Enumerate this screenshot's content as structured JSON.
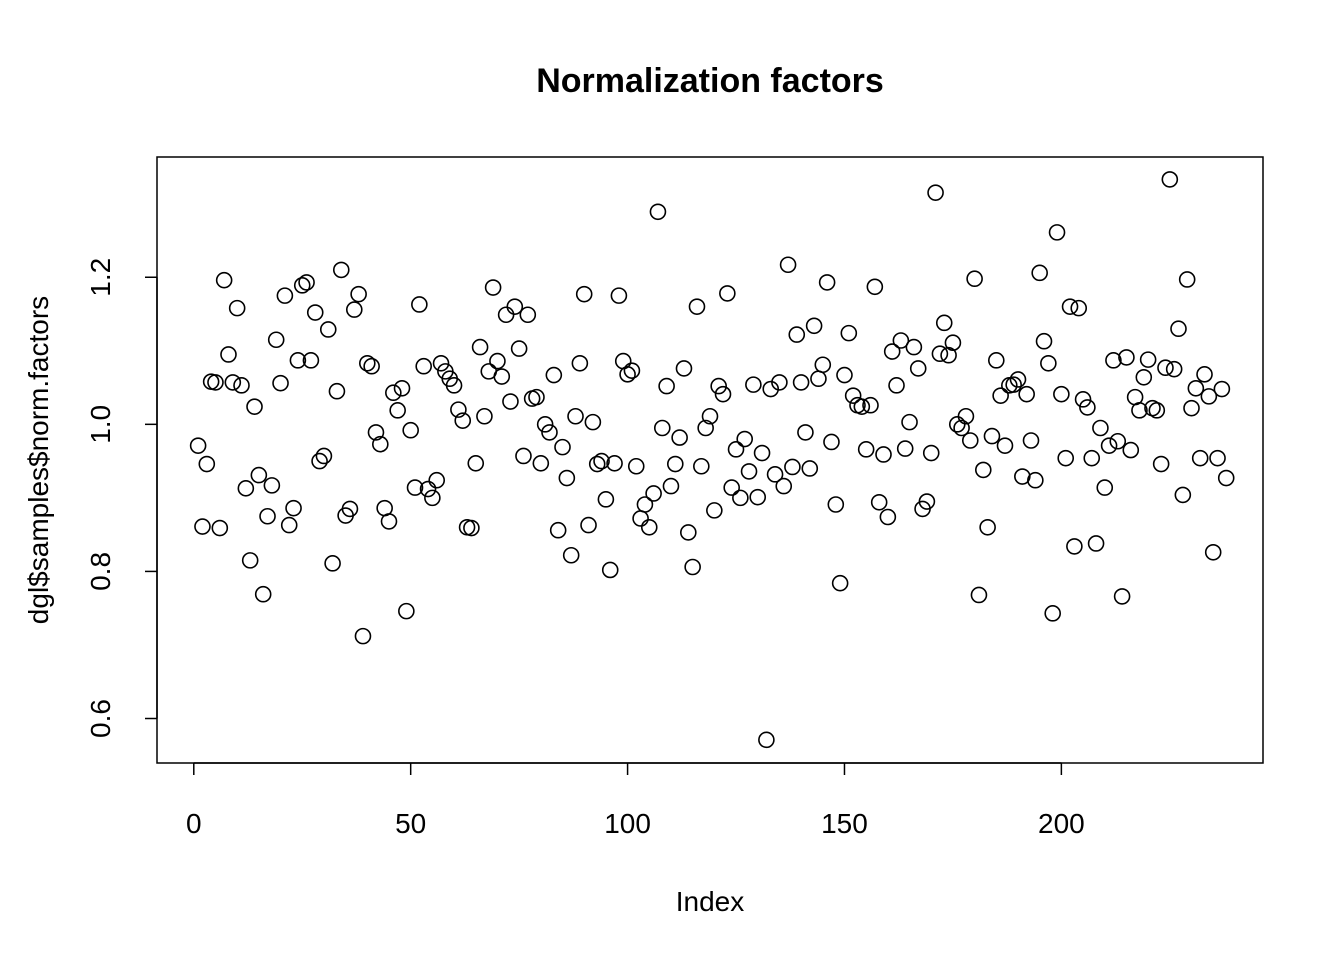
{
  "chart_data": {
    "type": "scatter",
    "title": "Normalization factors",
    "x_label": "Index",
    "y_label": "dgl$samples$norm.factors",
    "color": "#000000",
    "grid": false,
    "xlim": [
      -8.48,
      246.48
    ],
    "ylim": [
      0.5395,
      1.3635
    ],
    "xticks": [
      0,
      50,
      100,
      150,
      200
    ],
    "yticks": [
      0.6,
      0.8,
      {
        "value": 1,
        "label": "1.0"
      },
      1.2
    ],
    "x": [
      1,
      2,
      3,
      4,
      5,
      6,
      7,
      8,
      9,
      10,
      11,
      12,
      13,
      14,
      15,
      16,
      17,
      18,
      19,
      20,
      21,
      22,
      23,
      24,
      25,
      26,
      27,
      28,
      29,
      30,
      31,
      32,
      33,
      34,
      35,
      36,
      37,
      38,
      39,
      40,
      41,
      42,
      43,
      44,
      45,
      46,
      47,
      48,
      49,
      50,
      51,
      52,
      53,
      54,
      55,
      56,
      57,
      58,
      59,
      60,
      61,
      62,
      63,
      64,
      65,
      66,
      67,
      68,
      69,
      70,
      71,
      72,
      73,
      74,
      75,
      76,
      77,
      78,
      79,
      80,
      81,
      82,
      83,
      84,
      85,
      86,
      87,
      88,
      89,
      90,
      91,
      92,
      93,
      94,
      95,
      96,
      97,
      98,
      99,
      100,
      101,
      102,
      103,
      104,
      105,
      106,
      107,
      108,
      109,
      110,
      111,
      112,
      113,
      114,
      115,
      116,
      117,
      118,
      119,
      120,
      121,
      122,
      123,
      124,
      125,
      126,
      127,
      128,
      129,
      130,
      131,
      132,
      133,
      134,
      135,
      136,
      137,
      138,
      139,
      140,
      141,
      142,
      143,
      144,
      145,
      146,
      147,
      148,
      149,
      150,
      151,
      152,
      153,
      154,
      155,
      156,
      157,
      158,
      159,
      160,
      161,
      162,
      163,
      164,
      165,
      166,
      167,
      168,
      169,
      170,
      171,
      172,
      173,
      174,
      175,
      176,
      177,
      178,
      179,
      180,
      181,
      182,
      183,
      184,
      185,
      186,
      187,
      188,
      189,
      190,
      191,
      192,
      193,
      194,
      195,
      196,
      197,
      198,
      199,
      200,
      201,
      202,
      203,
      204,
      205,
      206,
      207,
      208,
      209,
      210,
      211,
      212,
      213,
      214,
      215,
      216,
      217,
      218,
      219,
      220,
      221,
      222,
      223,
      224,
      225,
      226,
      227,
      228,
      229,
      230,
      231,
      232,
      233,
      234,
      235,
      236,
      237,
      238
    ],
    "values": [
      0.971,
      0.861,
      0.946,
      1.058,
      1.057,
      0.859,
      1.196,
      1.095,
      1.057,
      1.158,
      1.053,
      0.913,
      0.815,
      1.024,
      0.931,
      0.769,
      0.875,
      0.917,
      1.115,
      1.056,
      1.175,
      0.863,
      0.886,
      1.087,
      1.189,
      1.193,
      1.087,
      1.152,
      0.95,
      0.957,
      1.129,
      0.811,
      1.045,
      1.21,
      0.876,
      0.885,
      1.156,
      1.177,
      0.712,
      1.083,
      1.079,
      0.989,
      0.973,
      0.886,
      0.868,
      1.043,
      1.019,
      1.049,
      0.746,
      0.992,
      0.914,
      1.163,
      1.079,
      0.912,
      0.9,
      0.924,
      1.083,
      1.072,
      1.062,
      1.053,
      1.02,
      1.005,
      0.86,
      0.859,
      0.947,
      1.105,
      1.011,
      1.072,
      1.186,
      1.086,
      1.065,
      1.149,
      1.031,
      1.16,
      1.103,
      0.957,
      1.149,
      1.035,
      1.037,
      0.947,
      1.0,
      0.989,
      1.067,
      0.856,
      0.969,
      0.927,
      0.822,
      1.011,
      1.083,
      1.177,
      0.863,
      1.003,
      0.946,
      0.95,
      0.898,
      0.802,
      0.947,
      1.175,
      1.086,
      1.068,
      1.073,
      0.943,
      0.872,
      0.891,
      0.86,
      0.906,
      1.289,
      0.995,
      1.052,
      0.916,
      0.946,
      0.982,
      1.076,
      0.853,
      0.806,
      1.16,
      0.943,
      0.995,
      1.011,
      0.883,
      1.052,
      1.041,
      1.178,
      0.914,
      0.966,
      0.9,
      0.98,
      0.936,
      1.054,
      0.901,
      0.961,
      0.571,
      1.048,
      0.932,
      1.057,
      0.916,
      1.217,
      0.942,
      1.122,
      1.057,
      0.989,
      0.94,
      1.134,
      1.062,
      1.081,
      1.193,
      0.976,
      0.891,
      0.784,
      1.067,
      1.124,
      1.039,
      1.026,
      1.024,
      0.966,
      1.026,
      1.187,
      0.894,
      0.959,
      0.874,
      1.099,
      1.053,
      1.114,
      0.967,
      1.003,
      1.105,
      1.076,
      0.885,
      0.895,
      0.961,
      1.315,
      1.096,
      1.138,
      1.094,
      1.111,
      1.0,
      0.995,
      1.011,
      0.978,
      1.198,
      0.768,
      0.938,
      0.86,
      0.984,
      1.087,
      1.039,
      0.971,
      1.053,
      1.054,
      1.061,
      0.929,
      1.041,
      0.978,
      0.924,
      1.206,
      1.113,
      1.083,
      0.743,
      1.261,
      1.041,
      0.954,
      1.16,
      0.834,
      1.158,
      1.034,
      1.023,
      0.954,
      0.838,
      0.995,
      0.914,
      0.971,
      1.087,
      0.977,
      0.766,
      1.091,
      0.965,
      1.037,
      1.019,
      1.064,
      1.088,
      1.022,
      1.019,
      0.946,
      1.077,
      1.333,
      1.075,
      1.13,
      0.904,
      1.197,
      1.022,
      1.049,
      0.954,
      1.068,
      1.038,
      0.826,
      0.954,
      1.048,
      0.927
    ]
  }
}
